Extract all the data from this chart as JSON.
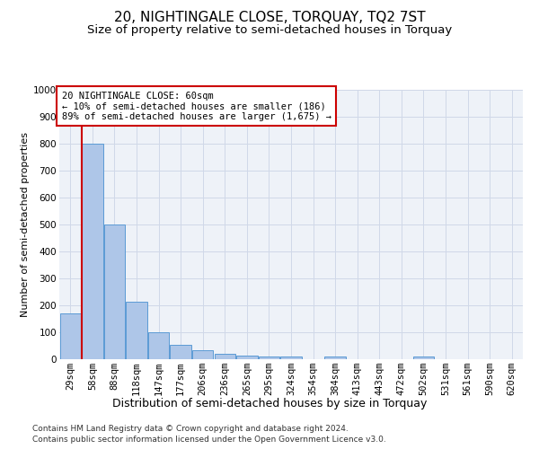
{
  "title": "20, NIGHTINGALE CLOSE, TORQUAY, TQ2 7ST",
  "subtitle": "Size of property relative to semi-detached houses in Torquay",
  "xlabel": "Distribution of semi-detached houses by size in Torquay",
  "ylabel": "Number of semi-detached properties",
  "footer_line1": "Contains HM Land Registry data © Crown copyright and database right 2024.",
  "footer_line2": "Contains public sector information licensed under the Open Government Licence v3.0.",
  "annotation_line1": "20 NIGHTINGALE CLOSE: 60sqm",
  "annotation_line2": "← 10% of semi-detached houses are smaller (186)",
  "annotation_line3": "89% of semi-detached houses are larger (1,675) →",
  "categories": [
    "29sqm",
    "58sqm",
    "88sqm",
    "118sqm",
    "147sqm",
    "177sqm",
    "206sqm",
    "236sqm",
    "265sqm",
    "295sqm",
    "324sqm",
    "354sqm",
    "384sqm",
    "413sqm",
    "443sqm",
    "472sqm",
    "502sqm",
    "531sqm",
    "561sqm",
    "590sqm",
    "620sqm"
  ],
  "values": [
    170,
    800,
    500,
    215,
    100,
    55,
    35,
    20,
    15,
    10,
    10,
    0,
    10,
    0,
    0,
    0,
    10,
    0,
    0,
    0,
    0
  ],
  "bar_color": "#aec6e8",
  "bar_edge_color": "#5b9bd5",
  "vertical_line_x": 0.5,
  "vertical_line_color": "#cc0000",
  "ylim": [
    0,
    1000
  ],
  "yticks": [
    0,
    100,
    200,
    300,
    400,
    500,
    600,
    700,
    800,
    900,
    1000
  ],
  "grid_color": "#d0d8e8",
  "background_color": "#eef2f8",
  "title_fontsize": 11,
  "subtitle_fontsize": 9.5,
  "xlabel_fontsize": 9,
  "ylabel_fontsize": 8,
  "tick_fontsize": 7.5,
  "annotation_fontsize": 7.5,
  "footer_fontsize": 6.5
}
